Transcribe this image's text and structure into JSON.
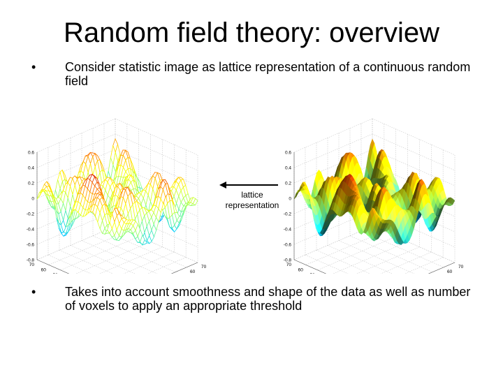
{
  "slide": {
    "title": "Random field theory: overview",
    "bullets": [
      {
        "marker": "•",
        "text": "Consider statistic image as lattice representation of a continuous random field"
      },
      {
        "marker": "•",
        "text": "Takes into account smoothness and shape of the data as well as number of voxels to apply an appropriate threshold"
      }
    ]
  },
  "figures": {
    "left_style": "wireframe mesh",
    "right_style": "smooth shaded surface",
    "z_ticks": [
      "0.6",
      "0.4",
      "0.2",
      "0",
      "-0.2",
      "-0.4",
      "-0.6",
      "-0.8"
    ],
    "x_ticks": [
      "70",
      "60",
      "50",
      "40",
      "30",
      "20",
      "10",
      "0"
    ],
    "y_ticks": [
      "0",
      "10",
      "20",
      "30",
      "40",
      "50",
      "60",
      "70"
    ],
    "colormap": [
      "#00008f",
      "#0050ff",
      "#00d0ff",
      "#80ff80",
      "#ffff00",
      "#ff8000",
      "#d00000"
    ]
  },
  "arrow": {
    "label_line1": "lattice",
    "label_line2": "representation"
  }
}
